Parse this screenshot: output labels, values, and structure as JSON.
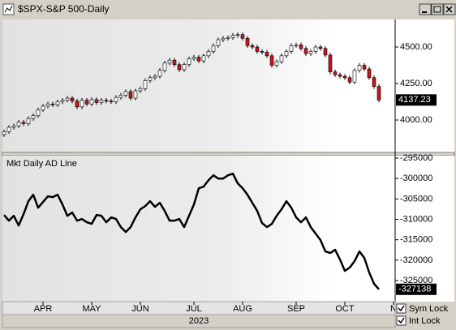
{
  "window": {
    "title": "$SPX-S&P 500-Daily",
    "sym_lock": "Sym Lock",
    "int_lock": "Int Lock"
  },
  "chart_data": [
    {
      "type": "candlestick",
      "open": [
        3900,
        3920,
        3950,
        3960,
        3985,
        3975,
        4010,
        4030,
        4070,
        4095,
        4110,
        4105,
        4125,
        4135,
        4150,
        4130,
        4090,
        4135,
        4110,
        4140,
        4120,
        4135,
        4130,
        4125,
        4155,
        4170,
        4195,
        4150,
        4200,
        4215,
        4270,
        4290,
        4300,
        4340,
        4390,
        4410,
        4380,
        4345,
        4380,
        4420,
        4430,
        4405,
        4440,
        4470,
        4510,
        4550,
        4560,
        4565,
        4580,
        4585,
        4560,
        4510,
        4500,
        4470,
        4465,
        4440,
        4375,
        4400,
        4440,
        4470,
        4510,
        4515,
        4490,
        4455,
        4470,
        4500,
        4490,
        4445,
        4330,
        4310,
        4300,
        4290,
        4260,
        4340,
        4375,
        4350,
        4290,
        4230,
        null,
        null,
        null
      ],
      "high": [
        3935,
        3965,
        3975,
        4000,
        4000,
        4025,
        4045,
        4085,
        4110,
        4125,
        4125,
        4140,
        4150,
        4165,
        4165,
        4145,
        4150,
        4150,
        4155,
        4155,
        4150,
        4150,
        4145,
        4170,
        4185,
        4210,
        4210,
        4215,
        4230,
        4285,
        4305,
        4315,
        4355,
        4405,
        4425,
        4425,
        4395,
        4395,
        4435,
        4445,
        4445,
        4455,
        4485,
        4525,
        4565,
        4575,
        4580,
        4595,
        4600,
        4600,
        4575,
        4525,
        4515,
        4485,
        4480,
        4455,
        4415,
        4455,
        4485,
        4525,
        4530,
        4530,
        4505,
        4485,
        4515,
        4515,
        4505,
        4460,
        4345,
        4325,
        4315,
        4305,
        4355,
        4390,
        4390,
        4365,
        4305,
        4245,
        null,
        null,
        null
      ],
      "low": [
        3885,
        3905,
        3935,
        3945,
        3960,
        3960,
        3995,
        4015,
        4055,
        4080,
        4090,
        4090,
        4110,
        4120,
        4115,
        4075,
        4075,
        4095,
        4095,
        4105,
        4105,
        4115,
        4110,
        4110,
        4140,
        4155,
        4135,
        4135,
        4185,
        4200,
        4255,
        4275,
        4285,
        4325,
        4375,
        4365,
        4330,
        4330,
        4365,
        4405,
        4390,
        4390,
        4425,
        4455,
        4495,
        4535,
        4545,
        4550,
        4565,
        4545,
        4495,
        4485,
        4455,
        4450,
        4425,
        4360,
        4360,
        4385,
        4425,
        4455,
        4495,
        4475,
        4440,
        4440,
        4455,
        4475,
        4430,
        4315,
        4295,
        4285,
        4275,
        4245,
        4245,
        4325,
        4335,
        4275,
        4215,
        4122,
        null,
        null,
        null
      ],
      "close": [
        3920,
        3950,
        3960,
        3985,
        3975,
        4010,
        4030,
        4070,
        4095,
        4110,
        4105,
        4125,
        4135,
        4150,
        4130,
        4090,
        4135,
        4110,
        4140,
        4120,
        4135,
        4130,
        4125,
        4155,
        4170,
        4195,
        4150,
        4200,
        4215,
        4270,
        4290,
        4300,
        4340,
        4390,
        4410,
        4380,
        4345,
        4380,
        4420,
        4430,
        4405,
        4440,
        4470,
        4510,
        4550,
        4560,
        4565,
        4580,
        4585,
        4560,
        4510,
        4500,
        4470,
        4465,
        4440,
        4375,
        4400,
        4440,
        4470,
        4510,
        4515,
        4490,
        4455,
        4470,
        4500,
        4490,
        4445,
        4330,
        4310,
        4300,
        4290,
        4260,
        4340,
        4375,
        4350,
        4290,
        4230,
        4137.23,
        null,
        null,
        null
      ],
      "up_color": "#ffffff",
      "down_color": "#c8141e",
      "ylim": [
        3778,
        4689
      ],
      "yticks": [
        {
          "value": 4500,
          "label": "4500.00"
        },
        {
          "value": 4250,
          "label": "4250.00"
        },
        {
          "value": 4000,
          "label": "4000.00"
        }
      ]
    },
    {
      "type": "line",
      "title": "Mkt Daily AD Line",
      "xlabel": "2023",
      "categories": [
        null,
        null,
        null,
        null,
        null,
        null,
        null,
        null,
        "APR",
        null,
        null,
        null,
        null,
        null,
        null,
        null,
        null,
        null,
        "MAY",
        null,
        null,
        null,
        null,
        null,
        null,
        null,
        null,
        null,
        "JUN",
        null,
        null,
        null,
        null,
        null,
        null,
        null,
        null,
        null,
        null,
        "JUL",
        null,
        null,
        null,
        null,
        null,
        null,
        null,
        null,
        null,
        "AUG",
        null,
        null,
        null,
        null,
        null,
        null,
        null,
        null,
        null,
        null,
        "SEP",
        null,
        null,
        null,
        null,
        null,
        null,
        null,
        null,
        null,
        "OCT",
        null,
        null,
        null,
        null,
        null,
        null,
        null,
        null,
        null,
        "N"
      ],
      "values": [
        -308930,
        -310320,
        -309130,
        -311510,
        -308730,
        -305560,
        -303970,
        -307140,
        -305750,
        -304360,
        -304560,
        -303970,
        -306350,
        -309130,
        -308330,
        -310320,
        -309920,
        -310710,
        -311110,
        -308930,
        -309130,
        -310710,
        -309520,
        -309920,
        -311900,
        -313090,
        -311900,
        -309520,
        -307540,
        -306750,
        -305560,
        -306940,
        -305950,
        -307940,
        -310320,
        -310320,
        -309920,
        -311900,
        -309130,
        -306350,
        -302380,
        -301980,
        -300400,
        -299210,
        -300000,
        -300000,
        -299210,
        -298810,
        -301190,
        -302380,
        -303970,
        -305950,
        -307940,
        -310910,
        -311900,
        -311110,
        -309130,
        -307540,
        -305560,
        -307140,
        -309520,
        -310710,
        -309520,
        -311900,
        -313490,
        -315080,
        -317860,
        -318250,
        -317460,
        -319840,
        -322620,
        -321820,
        -320240,
        -317860,
        -319440,
        -323010,
        -325790,
        -327138,
        null,
        null,
        null
      ],
      "color": "#000000",
      "ylim": [
        -330160,
        -294400
      ],
      "yticks": [
        -295000,
        -300000,
        -305000,
        -310000,
        -315000,
        -320000,
        -325000
      ]
    }
  ]
}
